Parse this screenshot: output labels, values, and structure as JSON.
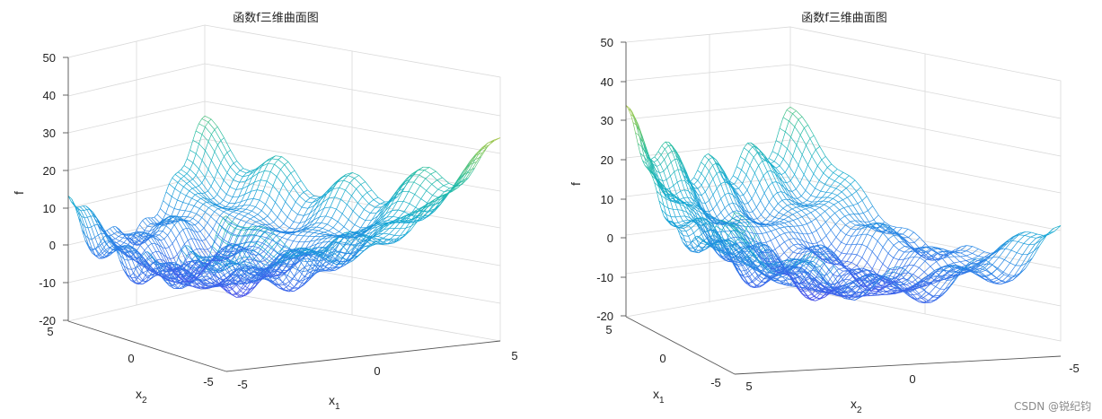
{
  "watermark": "CSDN @锐纪钧",
  "chart_data": [
    {
      "type": "surface",
      "title": "函数f三维曲面图",
      "zlabel": "f",
      "x1label": "x",
      "x1sub": "1",
      "x2label": "x",
      "x2sub": "2",
      "zticks": [
        "50",
        "40",
        "30",
        "20",
        "10",
        "0",
        "-10",
        "-20"
      ],
      "x1ticks": [
        "-5",
        "0",
        "5"
      ],
      "x2ticks": [
        "5",
        "0",
        "-5"
      ],
      "zlim": [
        -20,
        50
      ],
      "x1lim": [
        -5,
        5
      ],
      "x2lim": [
        -5,
        5
      ],
      "grid": true,
      "colormap": "parula"
    },
    {
      "type": "surface",
      "title": "函数f三维曲面图",
      "zlabel": "f",
      "x1label": "x",
      "x1sub": "1",
      "x2label": "x",
      "x2sub": "2",
      "zticks": [
        "50",
        "40",
        "30",
        "20",
        "10",
        "0",
        "-10",
        "-20"
      ],
      "x1ticks": [
        "5",
        "0",
        "-5"
      ],
      "x2ticks": [
        "5",
        "0",
        "-5"
      ],
      "zlim": [
        -20,
        50
      ],
      "x1lim": [
        -5,
        5
      ],
      "x2lim": [
        -5,
        5
      ],
      "grid": true,
      "colormap": "parula"
    }
  ]
}
